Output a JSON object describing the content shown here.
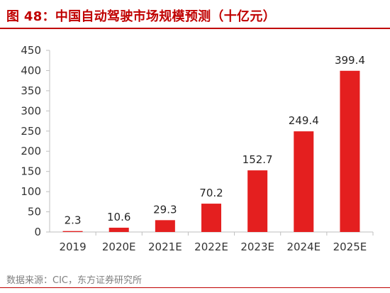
{
  "header": {
    "title": "图 48：中国自动驾驶市场规模预测（十亿元）"
  },
  "chart_data": {
    "type": "bar",
    "title": "中国自动驾驶市场规模预测（十亿元）",
    "xlabel": "",
    "ylabel": "",
    "categories": [
      "2019",
      "2020E",
      "2021E",
      "2022E",
      "2023E",
      "2024E",
      "2025E"
    ],
    "values": [
      2.3,
      10.6,
      29.3,
      70.2,
      152.7,
      249.4,
      399.4
    ],
    "ylim": [
      0,
      450
    ],
    "yticks": [
      0,
      50,
      100,
      150,
      200,
      250,
      300,
      350,
      400,
      450
    ],
    "grid": false,
    "legend": "none",
    "bar_color": "#e41f1f"
  },
  "footer": {
    "source": "数据来源：CIC，东方证券研究所"
  }
}
